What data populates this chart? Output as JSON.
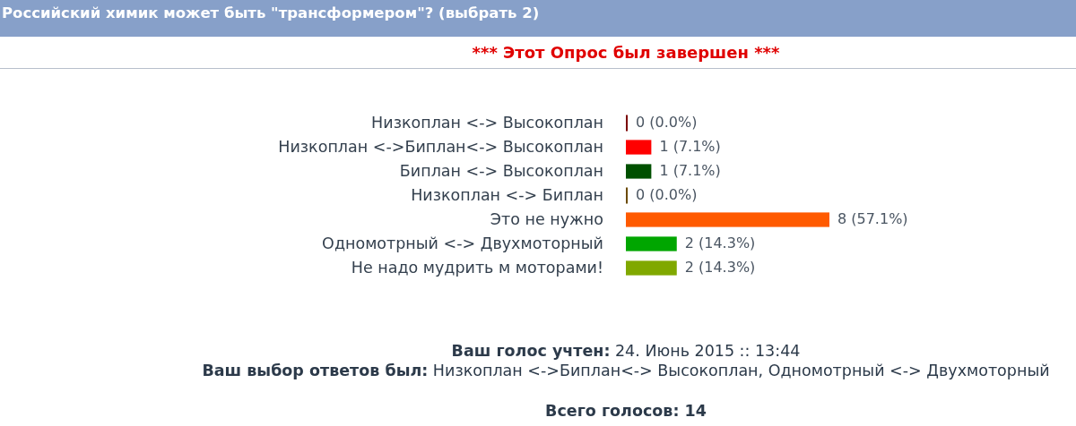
{
  "chart_data": {
    "type": "bar",
    "orientation": "horizontal",
    "title": "Российский химик может быть \"трансформером\"? (выбрать 2)",
    "subtitle": "*** Этот Опрос был завершен ***",
    "categories": [
      "Низкоплан <-> Высокоплан",
      "Низкоплан <->Биплан<-> Высокоплан",
      "Биплан <-> Высокоплан",
      "Низкоплан <-> Биплан",
      "Это не нужно",
      "Одномотрный <-> Двухмоторный",
      "Не надо мудрить м моторами!"
    ],
    "values": [
      0,
      1,
      1,
      0,
      8,
      2,
      2
    ],
    "colors": [
      "#7a0000",
      "#ff0000",
      "#005000",
      "#6b4a00",
      "#ff5a00",
      "#00a600",
      "#80a800"
    ],
    "value_labels": [
      "0 (0.0%)",
      "1 (7.1%)",
      "1 (7.1%)",
      "0 (0.0%)",
      "8 (57.1%)",
      "2 (14.3%)",
      "2 (14.3%)"
    ],
    "annotations": [
      "Ваш голос учтен: 24. Июнь 2015 :: 13:44",
      "Ваш выбор ответов был: Низкоплан <->Биплан<-> Высокоплан, Одномотрный <-> Двухмоторный",
      "Всего голосов: 14"
    ]
  }
}
